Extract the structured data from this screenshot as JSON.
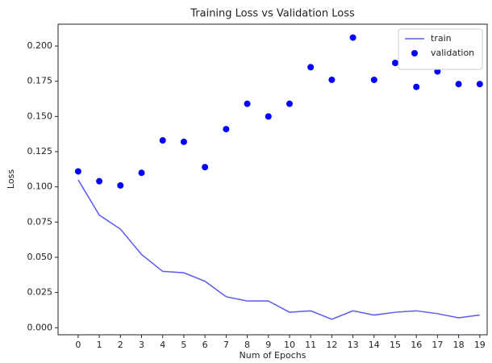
{
  "chart_data": {
    "type": "line",
    "title": "Training Loss vs Validation Loss",
    "xlabel": "Num of Epochs",
    "ylabel": "Loss",
    "x": [
      0,
      1,
      2,
      3,
      4,
      5,
      6,
      7,
      8,
      9,
      10,
      11,
      12,
      13,
      14,
      15,
      16,
      17,
      18,
      19
    ],
    "series": [
      {
        "name": "train",
        "type": "line",
        "color": "#5a5af0",
        "values": [
          0.105,
          0.08,
          0.07,
          0.052,
          0.04,
          0.039,
          0.033,
          0.022,
          0.019,
          0.019,
          0.011,
          0.012,
          0.006,
          0.012,
          0.009,
          0.011,
          0.012,
          0.01,
          0.007,
          0.009
        ]
      },
      {
        "name": "validation",
        "type": "scatter",
        "color": "#0000ff",
        "values": [
          0.111,
          0.104,
          0.101,
          0.11,
          0.133,
          0.132,
          0.114,
          0.141,
          0.159,
          0.15,
          0.159,
          0.185,
          0.176,
          0.206,
          0.176,
          0.188,
          0.171,
          0.182,
          0.173,
          0.173
        ]
      }
    ],
    "xlim": [
      -0.95,
      19.35
    ],
    "xticks": [
      0,
      1,
      2,
      3,
      4,
      5,
      6,
      7,
      8,
      9,
      10,
      11,
      12,
      13,
      14,
      15,
      16,
      17,
      18,
      19
    ],
    "ylim": [
      -0.005,
      0.2155
    ],
    "yticks": [
      {
        "value": 0,
        "label": "0.000"
      },
      {
        "value": 0.025,
        "label": "0.025"
      },
      {
        "value": 0.05,
        "label": "0.050"
      },
      {
        "value": 0.075,
        "label": "0.075"
      },
      {
        "value": 0.1,
        "label": "0.100"
      },
      {
        "value": 0.125,
        "label": "0.125"
      },
      {
        "value": 0.15,
        "label": "0.150"
      },
      {
        "value": 0.175,
        "label": "0.175"
      },
      {
        "value": 0.2,
        "label": "0.200"
      }
    ],
    "legend": "upper right",
    "grid": false
  }
}
